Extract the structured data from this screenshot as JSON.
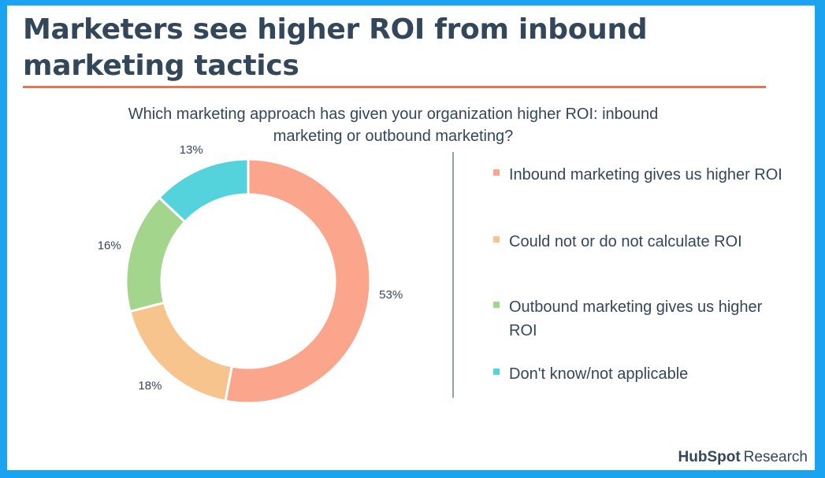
{
  "title": "Marketers see higher ROI from inbound marketing tactics",
  "question": "Which marketing approach has given your organization higher ROI: inbound marketing or outbound marketing?",
  "colors": {
    "background": "#1aa3f0",
    "title": "#33475b",
    "rule": "#f06f4f"
  },
  "chart_data": {
    "type": "pie",
    "donut": true,
    "title": "Which marketing approach has given your organization higher ROI: inbound marketing or outbound marketing?",
    "legend_position": "right",
    "slices": [
      {
        "label": "Inbound marketing gives us higher ROI",
        "value": 53,
        "value_label": "53%",
        "color": "#fba58c"
      },
      {
        "label": "Could not or do not calculate ROI",
        "value": 18,
        "value_label": "18%",
        "color": "#f7c48e"
      },
      {
        "label": "Outbound marketing gives us higher ROI",
        "value": 16,
        "value_label": "16%",
        "color": "#a3d58d"
      },
      {
        "label": "Don't know/not applicable",
        "value": 13,
        "value_label": "13%",
        "color": "#55d3dc"
      }
    ]
  },
  "legend": {
    "items": [
      {
        "text": "Inbound marketing gives us higher ROI",
        "color": "#fba58c"
      },
      {
        "text": "Could not or do not calculate ROI",
        "color": "#f7c48e"
      },
      {
        "text": "Outbound marketing gives us higher ROI",
        "color": "#a3d58d"
      },
      {
        "text": "Don't know/not applicable",
        "color": "#55d3dc"
      }
    ]
  },
  "brand": {
    "name": "HubSpot",
    "suffix": "Research"
  }
}
